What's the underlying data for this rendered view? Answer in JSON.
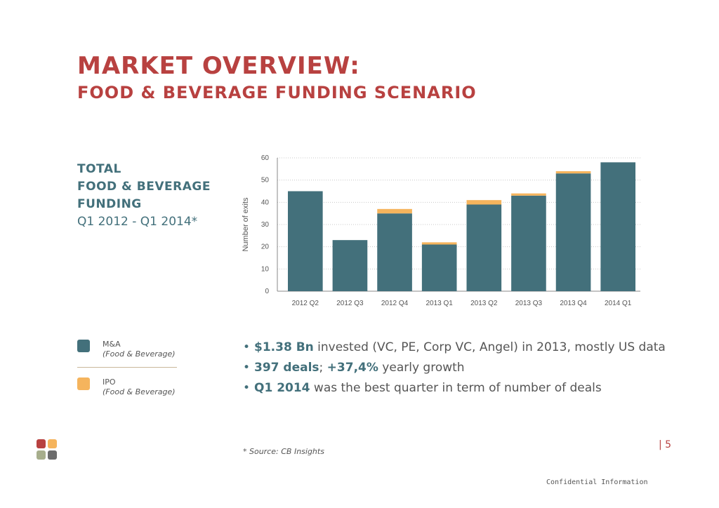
{
  "title": {
    "line1": "MARKET OVERVIEW:",
    "line2": "FOOD & BEVERAGE FUNDING SCENARIO"
  },
  "side_heading": {
    "line1": "TOTAL",
    "line2": "FOOD & BEVERAGE",
    "line3": "FUNDING",
    "line4": "Q1 2012 - Q1 2014*"
  },
  "legend": [
    {
      "label": "M&A",
      "sub": "(Food & Beverage)",
      "color": "#43707b"
    },
    {
      "label": "IPO",
      "sub": "(Food & Beverage)",
      "color": "#f5b45d"
    }
  ],
  "bullets": [
    {
      "bold": "$1.38 Bn",
      "rest": " invested (VC, PE, Corp VC, Angel) in 2013, mostly US data"
    },
    {
      "bold": "397 deals",
      "mid": "; ",
      "bold2": "+37,4%",
      "rest": " yearly growth"
    },
    {
      "bold": "Q1 2014",
      "rest": " was the best quarter in term of number of deals"
    }
  ],
  "source": "* Source: CB Insights",
  "page_number": "| 5",
  "confidential": "Confidential Information",
  "logo_colors": [
    "#b84140",
    "#f5b45d",
    "#a7ae8c",
    "#6c6c6c"
  ],
  "chart_data": {
    "type": "bar",
    "stacked": true,
    "categories": [
      "2012 Q2",
      "2012 Q3",
      "2012 Q4",
      "2013 Q1",
      "2013 Q2",
      "2013 Q3",
      "2013 Q4",
      "2014 Q1"
    ],
    "series": [
      {
        "name": "M&A",
        "values": [
          45,
          23,
          35,
          21,
          39,
          43,
          53,
          58
        ],
        "color": "#43707b"
      },
      {
        "name": "IPO",
        "values": [
          0,
          0,
          2,
          1,
          2,
          1,
          1,
          0
        ],
        "color": "#f5b45d"
      }
    ],
    "ylabel": "Number of exits",
    "xlabel": "",
    "ylim": [
      0,
      60
    ],
    "yticks": [
      0,
      10,
      20,
      30,
      40,
      50,
      60
    ],
    "grid": true
  }
}
